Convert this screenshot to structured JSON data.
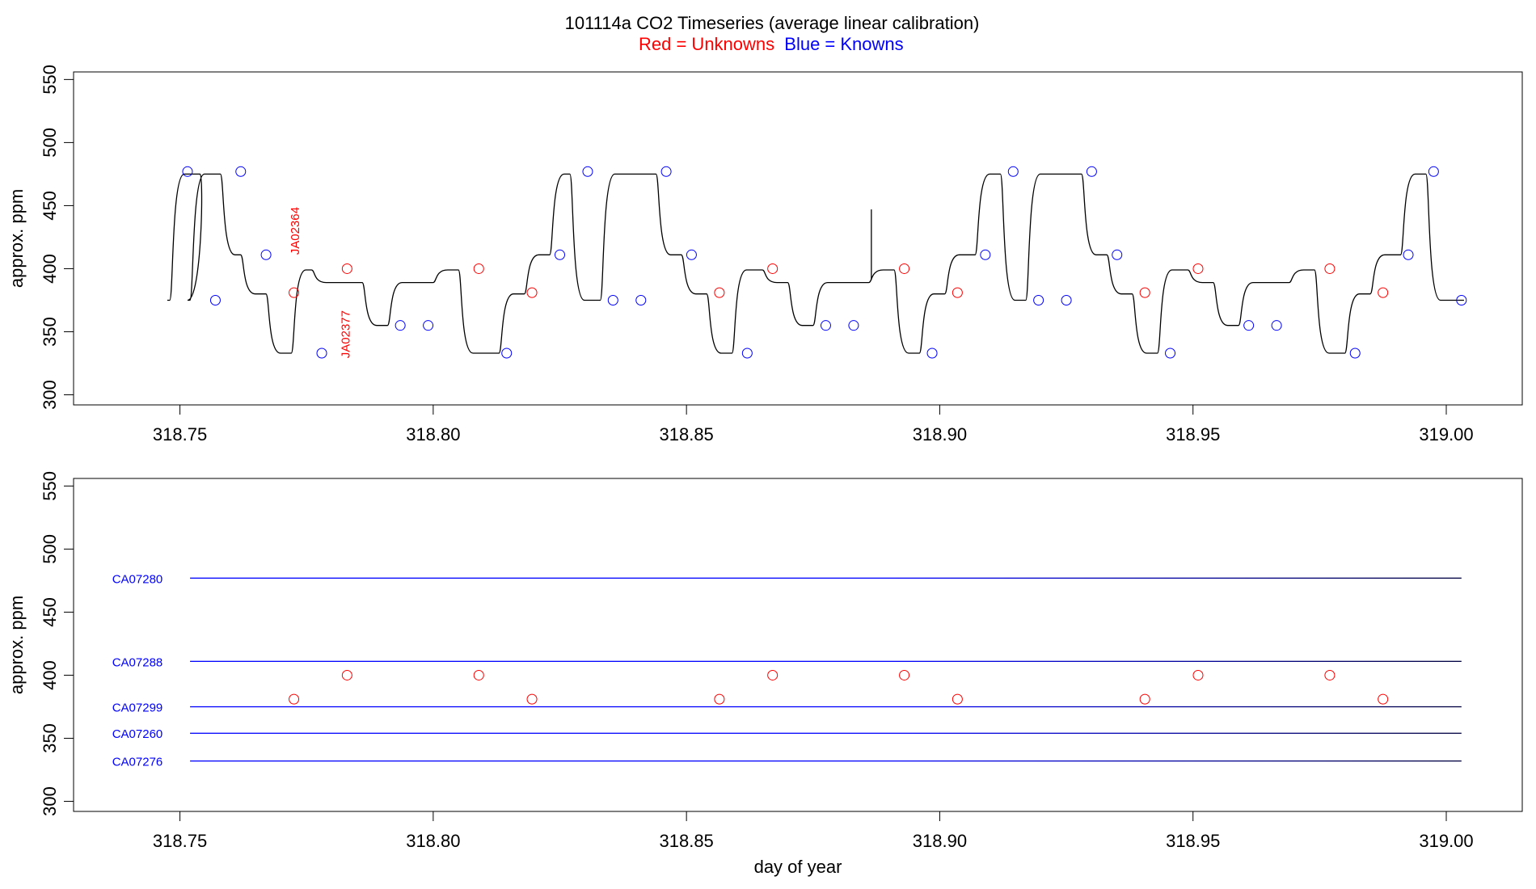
{
  "title": {
    "main": "101114a   CO2 Timeseries (average linear calibration)",
    "legend_red": "Red = Unknowns",
    "legend_blue": "Blue = Knowns"
  },
  "colors": {
    "unknown": "#ff0000",
    "known": "#0000ff",
    "trace": "#000000"
  },
  "chart_data": [
    {
      "type": "line",
      "panel": "top",
      "xlabel": "",
      "ylabel": "approx. ppm",
      "xlim": [
        318.729,
        319.015
      ],
      "ylim": [
        292,
        556
      ],
      "xticks": [
        "318.75",
        "318.80",
        "318.85",
        "318.90",
        "318.95",
        "319.00"
      ],
      "yticks": [
        "300",
        "350",
        "400",
        "450",
        "500",
        "550"
      ],
      "trace": {
        "x": [
          318.7475,
          318.7535,
          318.7515,
          318.7575,
          318.7615,
          318.7665,
          318.7715,
          318.7755,
          318.7835,
          318.7855,
          318.7905,
          318.7995,
          318.8045,
          318.8125,
          318.8175,
          318.8225,
          318.8265,
          318.8325,
          318.8435,
          318.8485,
          318.8535,
          318.8585,
          318.8645,
          318.8695,
          318.8745,
          318.8855,
          318.8905,
          318.8955,
          318.9005,
          318.9065,
          318.9115,
          318.9165,
          318.9275,
          318.9325,
          318.9375,
          318.9425,
          318.9485,
          318.9535,
          318.9585,
          318.9685,
          318.9735,
          318.9795,
          318.9845,
          318.9905,
          318.9955,
          319.0005,
          319.0035
        ],
        "y": [
          375,
          475,
          375,
          475,
          411,
          380,
          333,
          399,
          389,
          389,
          355,
          389,
          399,
          333,
          380,
          411,
          475,
          375,
          475,
          411,
          380,
          333,
          399,
          389,
          355,
          389,
          399,
          333,
          380,
          411,
          475,
          375,
          475,
          411,
          380,
          333,
          399,
          389,
          355,
          389,
          399,
          333,
          380,
          411,
          475,
          375,
          375
        ]
      },
      "spike": {
        "x": 318.8865,
        "y_from": 391,
        "y_to": 447
      },
      "known_points": {
        "x": [
          318.7515,
          318.757,
          318.762,
          318.767,
          318.778,
          318.7935,
          318.799,
          318.8145,
          318.825,
          318.8305,
          318.8355,
          318.841,
          318.846,
          318.851,
          318.862,
          318.8775,
          318.883,
          318.8985,
          318.909,
          318.9145,
          318.9195,
          318.925,
          318.93,
          318.935,
          318.9455,
          318.961,
          318.9665,
          318.982,
          318.9925,
          318.9975,
          319.003
        ],
        "y": [
          477,
          375,
          477,
          411,
          333,
          355,
          355,
          333,
          411,
          477,
          375,
          375,
          477,
          411,
          333,
          355,
          355,
          333,
          411,
          477,
          375,
          375,
          477,
          411,
          333,
          355,
          355,
          333,
          411,
          477,
          375
        ]
      },
      "unknown_points": {
        "x": [
          318.7725,
          318.783,
          318.809,
          318.8195,
          318.8565,
          318.867,
          318.893,
          318.9035,
          318.9405,
          318.951,
          318.977,
          318.9875
        ],
        "y": [
          381,
          400,
          400,
          381,
          381,
          400,
          400,
          381,
          381,
          400,
          400,
          381
        ]
      },
      "annotations": [
        {
          "text": "JA02364",
          "x": 318.7735,
          "y": 430
        },
        {
          "text": "JA02377",
          "x": 318.7835,
          "y": 348
        }
      ]
    },
    {
      "type": "scatter",
      "panel": "bottom",
      "xlabel": "day of year",
      "ylabel": "approx. ppm",
      "xlim": [
        318.729,
        319.015
      ],
      "ylim": [
        292,
        556
      ],
      "xticks": [
        "318.75",
        "318.80",
        "318.85",
        "318.90",
        "318.95",
        "319.00"
      ],
      "yticks": [
        "300",
        "350",
        "400",
        "450",
        "500",
        "550"
      ],
      "standards": [
        {
          "name": "CA07280",
          "value": 477
        },
        {
          "name": "CA07288",
          "value": 411
        },
        {
          "name": "CA07299",
          "value": 375
        },
        {
          "name": "CA07260",
          "value": 354
        },
        {
          "name": "CA07276",
          "value": 332
        }
      ],
      "standard_x_range": [
        318.752,
        319.003
      ],
      "unknown_points": {
        "x": [
          318.7725,
          318.783,
          318.809,
          318.8195,
          318.8565,
          318.867,
          318.893,
          318.9035,
          318.9405,
          318.951,
          318.977,
          318.9875
        ],
        "y": [
          381,
          400,
          400,
          381,
          381,
          400,
          400,
          381,
          381,
          400,
          400,
          381
        ]
      }
    }
  ]
}
